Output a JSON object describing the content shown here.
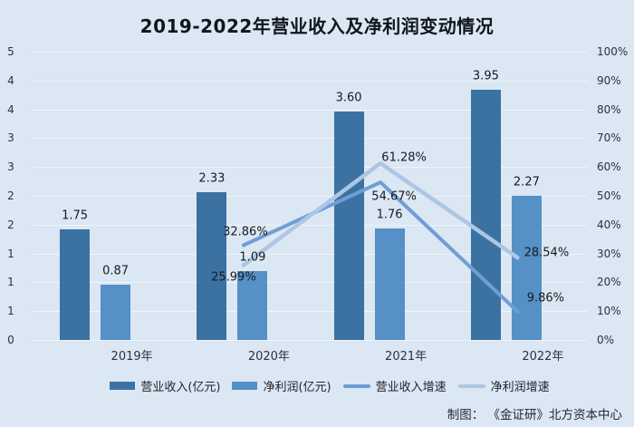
{
  "title": "2019-2022年营业收入及净利润变动情况",
  "credit": "制图： 《金证研》北方资本中心",
  "colors": {
    "background": "#dbe7f3",
    "gridline": "#eef4fb",
    "title_text": "#10161f",
    "axis_text": "#2d333c",
    "label_text": "#161b22",
    "revenue_bar": "#3c72a2",
    "profit_bar": "#5590c6",
    "revenue_line": "#6f9ed6",
    "profit_line": "#adc6e3"
  },
  "chart_data": {
    "type": "bar",
    "secondary_type": "line",
    "title": "2019-2022年营业收入及净利润变动情况",
    "categories": [
      "2019年",
      "2020年",
      "2021年",
      "2022年"
    ],
    "bar_series": [
      {
        "name": "营业收入(亿元)",
        "axis": "left",
        "color": "#3c72a2",
        "values": [
          1.75,
          2.33,
          3.6,
          3.95
        ],
        "data_labels": [
          "1.75",
          "2.33",
          "3.60",
          "3.95"
        ]
      },
      {
        "name": "净利润(亿元)",
        "axis": "left",
        "color": "#5590c6",
        "values": [
          0.87,
          1.09,
          1.76,
          2.27
        ],
        "data_labels": [
          "0.87",
          "1.09",
          "1.76",
          "2.27"
        ]
      }
    ],
    "line_series": [
      {
        "name": "营业收入增速",
        "axis": "right",
        "color": "#6f9ed6",
        "categories": [
          "2020年",
          "2021年",
          "2022年"
        ],
        "values": [
          32.86,
          54.67,
          9.86
        ],
        "data_labels": [
          "32.86%",
          "54.67%",
          "9.86%"
        ]
      },
      {
        "name": "净利润增速",
        "axis": "right",
        "color": "#adc6e3",
        "categories": [
          "2020年",
          "2021年",
          "2022年"
        ],
        "values": [
          25.99,
          61.28,
          28.54
        ],
        "data_labels": [
          "25.99%",
          "61.28%",
          "28.54%"
        ]
      }
    ],
    "left_axis": {
      "range": [
        0,
        5
      ],
      "tick_labels": [
        "5",
        "4",
        "4",
        "3",
        "3",
        "2",
        "2",
        "1",
        "1",
        "1",
        "0"
      ]
    },
    "right_axis": {
      "range": [
        0,
        100
      ],
      "tick_labels": [
        "100%",
        "90%",
        "80%",
        "70%",
        "60%",
        "50%",
        "40%",
        "30%",
        "20%",
        "10%",
        "0%"
      ]
    },
    "legend": {
      "position": "bottom",
      "entries": [
        "营业收入(亿元)",
        "净利润(亿元)",
        "营业收入增速",
        "净利润增速"
      ]
    },
    "grid": "horizontal"
  }
}
